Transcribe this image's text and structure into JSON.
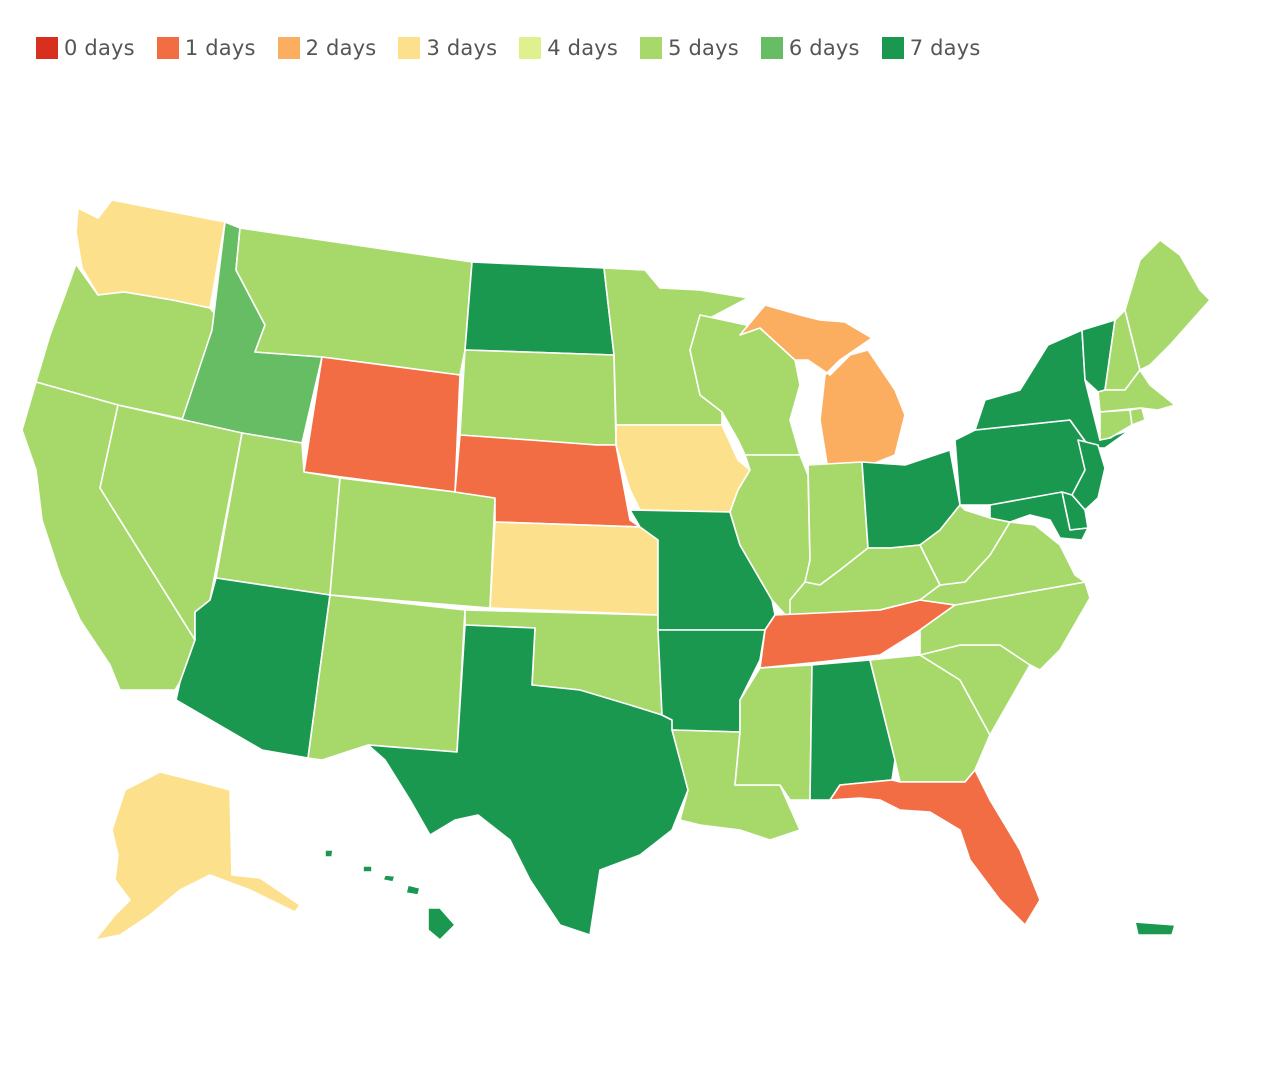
{
  "legend": [
    {
      "label": "0 days",
      "color": "#d7301f"
    },
    {
      "label": "1 days",
      "color": "#f26d43"
    },
    {
      "label": "2 days",
      "color": "#fbad60"
    },
    {
      "label": "3 days",
      "color": "#fde08b"
    },
    {
      "label": "4 days",
      "color": "#dff08e"
    },
    {
      "label": "5 days",
      "color": "#a6d96a"
    },
    {
      "label": "6 days",
      "color": "#66bd63"
    },
    {
      "label": "7 days",
      "color": "#1a9850"
    }
  ],
  "states": [
    {
      "id": "WA",
      "days": 3
    },
    {
      "id": "OR",
      "days": 5
    },
    {
      "id": "CA",
      "days": 5
    },
    {
      "id": "ID",
      "days": 6
    },
    {
      "id": "NV",
      "days": 5
    },
    {
      "id": "MT",
      "days": 5
    },
    {
      "id": "WY",
      "days": 1
    },
    {
      "id": "UT",
      "days": 5
    },
    {
      "id": "AZ",
      "days": 7
    },
    {
      "id": "CO",
      "days": 5
    },
    {
      "id": "NM",
      "days": 5
    },
    {
      "id": "ND",
      "days": 7
    },
    {
      "id": "SD",
      "days": 5
    },
    {
      "id": "NE",
      "days": 1
    },
    {
      "id": "KS",
      "days": 3
    },
    {
      "id": "OK",
      "days": 5
    },
    {
      "id": "TX",
      "days": 7
    },
    {
      "id": "MN",
      "days": 5
    },
    {
      "id": "IA",
      "days": 3
    },
    {
      "id": "MO",
      "days": 7
    },
    {
      "id": "AR",
      "days": 7
    },
    {
      "id": "LA",
      "days": 5
    },
    {
      "id": "WI",
      "days": 5
    },
    {
      "id": "IL",
      "days": 5
    },
    {
      "id": "MI",
      "days": 2
    },
    {
      "id": "IN",
      "days": 5
    },
    {
      "id": "OH",
      "days": 7
    },
    {
      "id": "KY",
      "days": 5
    },
    {
      "id": "TN",
      "days": 1
    },
    {
      "id": "MS",
      "days": 5
    },
    {
      "id": "AL",
      "days": 7
    },
    {
      "id": "GA",
      "days": 5
    },
    {
      "id": "FL",
      "days": 1
    },
    {
      "id": "SC",
      "days": 5
    },
    {
      "id": "NC",
      "days": 5
    },
    {
      "id": "VA",
      "days": 5
    },
    {
      "id": "WV",
      "days": 5
    },
    {
      "id": "PA",
      "days": 7
    },
    {
      "id": "NY",
      "days": 7
    },
    {
      "id": "VT",
      "days": 7
    },
    {
      "id": "NH",
      "days": 5
    },
    {
      "id": "ME",
      "days": 5
    },
    {
      "id": "MA",
      "days": 5
    },
    {
      "id": "CT",
      "days": 5
    },
    {
      "id": "RI",
      "days": 5
    },
    {
      "id": "NJ",
      "days": 7
    },
    {
      "id": "DE",
      "days": 7
    },
    {
      "id": "MD",
      "days": 7
    },
    {
      "id": "AK",
      "days": 3
    },
    {
      "id": "HI",
      "days": 7
    },
    {
      "id": "PR",
      "days": 7
    }
  ]
}
